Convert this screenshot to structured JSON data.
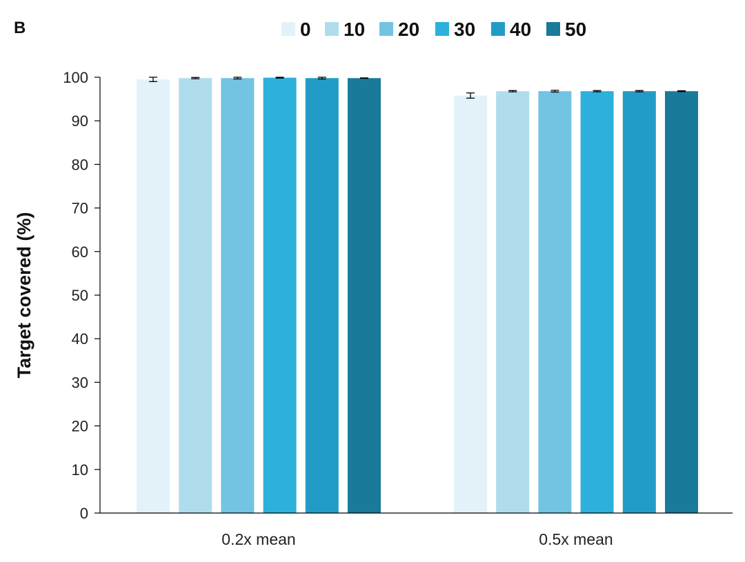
{
  "panel_label": "B",
  "chart_data": {
    "type": "bar",
    "categories": [
      "0.2x mean",
      "0.5x mean"
    ],
    "ylabel": "Target covered (%)",
    "xlabel": "",
    "ylim": [
      0,
      100
    ],
    "yticks": [
      "0",
      "10",
      "20",
      "30",
      "40",
      "50",
      "60",
      "70",
      "80",
      "90",
      "100"
    ],
    "legend_placement": "top",
    "series": [
      {
        "name": "0",
        "color": "#e3f2f9",
        "values": [
          99.5,
          95.8
        ],
        "errors": [
          0.5,
          0.6
        ]
      },
      {
        "name": "10",
        "color": "#b0ddec",
        "values": [
          99.8,
          96.8
        ],
        "errors": [
          0.15,
          0.15
        ]
      },
      {
        "name": "20",
        "color": "#72c4e2",
        "values": [
          99.8,
          96.8
        ],
        "errors": [
          0.2,
          0.2
        ]
      },
      {
        "name": "30",
        "color": "#2db0dc",
        "values": [
          99.9,
          96.8
        ],
        "errors": [
          0.1,
          0.15
        ]
      },
      {
        "name": "40",
        "color": "#229cc6",
        "values": [
          99.8,
          96.8
        ],
        "errors": [
          0.2,
          0.15
        ]
      },
      {
        "name": "50",
        "color": "#1a7a9a",
        "values": [
          99.8,
          96.8
        ],
        "errors": [
          0.05,
          0.1
        ]
      }
    ]
  }
}
